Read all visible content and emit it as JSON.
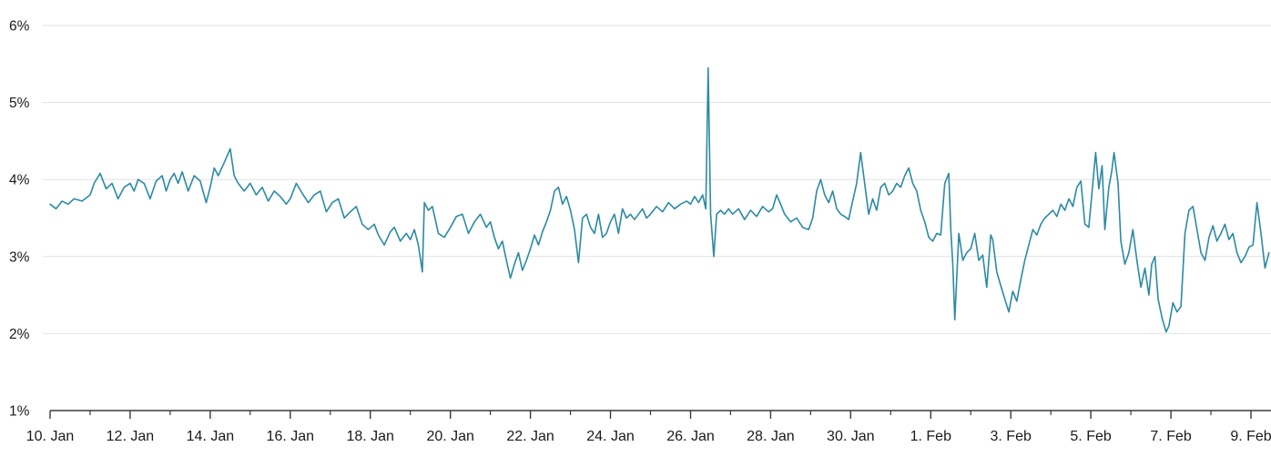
{
  "chart_data": {
    "type": "line",
    "title": "",
    "xlabel": "",
    "ylabel": "",
    "background": "#ffffff",
    "axis_color": "#3a3a3a",
    "text_color": "#1a1a1a",
    "grid": {
      "horizontal": true,
      "vertical": false,
      "color": "#e2e2e2"
    },
    "x_axis": {
      "tick_labels": [
        "10. Jan",
        "12. Jan",
        "14. Jan",
        "16. Jan",
        "18. Jan",
        "20. Jan",
        "22. Jan",
        "24. Jan",
        "26. Jan",
        "28. Jan",
        "30. Jan",
        "1. Feb",
        "3. Feb",
        "5. Feb",
        "7. Feb",
        "9. Feb"
      ],
      "tick_positions_days": [
        0,
        2,
        4,
        6,
        8,
        10,
        12,
        14,
        16,
        18,
        20,
        22,
        24,
        26,
        28,
        30
      ],
      "minor_tick_positions_days": [
        1,
        3,
        5,
        7,
        9,
        11,
        13,
        15,
        17,
        19,
        21,
        23,
        25,
        27,
        29
      ],
      "range_days": [
        0,
        30.5
      ]
    },
    "y_axis": {
      "tick_labels": [
        "1%",
        "2%",
        "3%",
        "4%",
        "5%",
        "6%"
      ],
      "tick_values": [
        1,
        2,
        3,
        4,
        5,
        6
      ],
      "range": [
        1,
        6
      ],
      "unit": "%"
    },
    "series": [
      {
        "name": "percentage-series",
        "color": "#2b8aa4",
        "points": [
          [
            0,
            3.68
          ],
          [
            0.15,
            3.62
          ],
          [
            0.3,
            3.72
          ],
          [
            0.45,
            3.68
          ],
          [
            0.6,
            3.75
          ],
          [
            0.8,
            3.72
          ],
          [
            1,
            3.8
          ],
          [
            1.1,
            3.95
          ],
          [
            1.25,
            4.08
          ],
          [
            1.4,
            3.88
          ],
          [
            1.55,
            3.95
          ],
          [
            1.7,
            3.75
          ],
          [
            1.85,
            3.9
          ],
          [
            2,
            3.95
          ],
          [
            2.1,
            3.85
          ],
          [
            2.2,
            4
          ],
          [
            2.35,
            3.95
          ],
          [
            2.5,
            3.75
          ],
          [
            2.65,
            3.98
          ],
          [
            2.8,
            4.05
          ],
          [
            2.9,
            3.85
          ],
          [
            3,
            4
          ],
          [
            3.1,
            4.08
          ],
          [
            3.2,
            3.95
          ],
          [
            3.3,
            4.1
          ],
          [
            3.45,
            3.85
          ],
          [
            3.6,
            4.05
          ],
          [
            3.75,
            3.98
          ],
          [
            3.9,
            3.7
          ],
          [
            4,
            3.9
          ],
          [
            4.1,
            4.15
          ],
          [
            4.2,
            4.05
          ],
          [
            4.35,
            4.22
          ],
          [
            4.5,
            4.4
          ],
          [
            4.6,
            4.05
          ],
          [
            4.7,
            3.95
          ],
          [
            4.85,
            3.85
          ],
          [
            5,
            3.95
          ],
          [
            5.15,
            3.8
          ],
          [
            5.3,
            3.9
          ],
          [
            5.45,
            3.72
          ],
          [
            5.6,
            3.85
          ],
          [
            5.75,
            3.78
          ],
          [
            5.9,
            3.68
          ],
          [
            6,
            3.75
          ],
          [
            6.15,
            3.95
          ],
          [
            6.3,
            3.82
          ],
          [
            6.45,
            3.7
          ],
          [
            6.6,
            3.8
          ],
          [
            6.75,
            3.85
          ],
          [
            6.9,
            3.58
          ],
          [
            7.05,
            3.7
          ],
          [
            7.2,
            3.75
          ],
          [
            7.35,
            3.5
          ],
          [
            7.5,
            3.58
          ],
          [
            7.65,
            3.65
          ],
          [
            7.8,
            3.42
          ],
          [
            7.95,
            3.35
          ],
          [
            8.1,
            3.42
          ],
          [
            8.2,
            3.28
          ],
          [
            8.35,
            3.15
          ],
          [
            8.5,
            3.32
          ],
          [
            8.6,
            3.38
          ],
          [
            8.75,
            3.2
          ],
          [
            8.9,
            3.3
          ],
          [
            9,
            3.22
          ],
          [
            9.1,
            3.35
          ],
          [
            9.2,
            3.15
          ],
          [
            9.3,
            2.8
          ],
          [
            9.35,
            3.7
          ],
          [
            9.45,
            3.6
          ],
          [
            9.55,
            3.65
          ],
          [
            9.7,
            3.3
          ],
          [
            9.85,
            3.25
          ],
          [
            10,
            3.38
          ],
          [
            10.15,
            3.52
          ],
          [
            10.3,
            3.55
          ],
          [
            10.45,
            3.3
          ],
          [
            10.6,
            3.45
          ],
          [
            10.75,
            3.55
          ],
          [
            10.9,
            3.38
          ],
          [
            11,
            3.45
          ],
          [
            11.1,
            3.25
          ],
          [
            11.2,
            3.1
          ],
          [
            11.3,
            3.2
          ],
          [
            11.4,
            2.95
          ],
          [
            11.5,
            2.72
          ],
          [
            11.6,
            2.9
          ],
          [
            11.7,
            3.05
          ],
          [
            11.8,
            2.82
          ],
          [
            11.9,
            2.95
          ],
          [
            12,
            3.1
          ],
          [
            12.1,
            3.28
          ],
          [
            12.2,
            3.15
          ],
          [
            12.3,
            3.32
          ],
          [
            12.4,
            3.45
          ],
          [
            12.5,
            3.6
          ],
          [
            12.6,
            3.85
          ],
          [
            12.7,
            3.9
          ],
          [
            12.8,
            3.68
          ],
          [
            12.9,
            3.78
          ],
          [
            13,
            3.6
          ],
          [
            13.1,
            3.35
          ],
          [
            13.2,
            2.92
          ],
          [
            13.3,
            3.5
          ],
          [
            13.4,
            3.55
          ],
          [
            13.5,
            3.38
          ],
          [
            13.6,
            3.3
          ],
          [
            13.7,
            3.55
          ],
          [
            13.8,
            3.25
          ],
          [
            13.9,
            3.3
          ],
          [
            14,
            3.45
          ],
          [
            14.1,
            3.55
          ],
          [
            14.2,
            3.3
          ],
          [
            14.3,
            3.62
          ],
          [
            14.4,
            3.5
          ],
          [
            14.5,
            3.55
          ],
          [
            14.6,
            3.48
          ],
          [
            14.7,
            3.55
          ],
          [
            14.8,
            3.62
          ],
          [
            14.9,
            3.5
          ],
          [
            15,
            3.55
          ],
          [
            15.15,
            3.65
          ],
          [
            15.3,
            3.58
          ],
          [
            15.45,
            3.7
          ],
          [
            15.6,
            3.62
          ],
          [
            15.75,
            3.68
          ],
          [
            15.9,
            3.72
          ],
          [
            16,
            3.68
          ],
          [
            16.1,
            3.78
          ],
          [
            16.2,
            3.7
          ],
          [
            16.3,
            3.8
          ],
          [
            16.38,
            3.62
          ],
          [
            16.44,
            5.45
          ],
          [
            16.5,
            3.55
          ],
          [
            16.58,
            3
          ],
          [
            16.65,
            3.55
          ],
          [
            16.75,
            3.6
          ],
          [
            16.85,
            3.55
          ],
          [
            16.95,
            3.62
          ],
          [
            17.05,
            3.55
          ],
          [
            17.2,
            3.62
          ],
          [
            17.35,
            3.48
          ],
          [
            17.5,
            3.6
          ],
          [
            17.65,
            3.52
          ],
          [
            17.8,
            3.65
          ],
          [
            17.95,
            3.58
          ],
          [
            18.05,
            3.62
          ],
          [
            18.15,
            3.8
          ],
          [
            18.25,
            3.68
          ],
          [
            18.35,
            3.55
          ],
          [
            18.5,
            3.45
          ],
          [
            18.65,
            3.5
          ],
          [
            18.8,
            3.38
          ],
          [
            18.95,
            3.35
          ],
          [
            19.05,
            3.5
          ],
          [
            19.15,
            3.85
          ],
          [
            19.25,
            4
          ],
          [
            19.35,
            3.8
          ],
          [
            19.45,
            3.7
          ],
          [
            19.55,
            3.85
          ],
          [
            19.65,
            3.62
          ],
          [
            19.75,
            3.55
          ],
          [
            19.85,
            3.52
          ],
          [
            19.95,
            3.48
          ],
          [
            20.05,
            3.72
          ],
          [
            20.15,
            3.95
          ],
          [
            20.25,
            4.35
          ],
          [
            20.35,
            3.95
          ],
          [
            20.45,
            3.55
          ],
          [
            20.55,
            3.75
          ],
          [
            20.65,
            3.6
          ],
          [
            20.75,
            3.9
          ],
          [
            20.85,
            3.95
          ],
          [
            20.95,
            3.8
          ],
          [
            21.05,
            3.85
          ],
          [
            21.15,
            3.95
          ],
          [
            21.25,
            3.9
          ],
          [
            21.35,
            4.05
          ],
          [
            21.45,
            4.15
          ],
          [
            21.55,
            3.95
          ],
          [
            21.65,
            3.85
          ],
          [
            21.75,
            3.6
          ],
          [
            21.85,
            3.45
          ],
          [
            21.95,
            3.25
          ],
          [
            22.05,
            3.2
          ],
          [
            22.15,
            3.3
          ],
          [
            22.25,
            3.28
          ],
          [
            22.35,
            3.95
          ],
          [
            22.45,
            4.08
          ],
          [
            22.5,
            3.35
          ],
          [
            22.55,
            2.9
          ],
          [
            22.6,
            2.18
          ],
          [
            22.7,
            3.3
          ],
          [
            22.8,
            2.95
          ],
          [
            22.9,
            3.05
          ],
          [
            23,
            3.1
          ],
          [
            23.1,
            3.3
          ],
          [
            23.2,
            2.95
          ],
          [
            23.3,
            3.02
          ],
          [
            23.4,
            2.6
          ],
          [
            23.5,
            3.28
          ],
          [
            23.55,
            3.22
          ],
          [
            23.65,
            2.8
          ],
          [
            23.75,
            2.62
          ],
          [
            23.85,
            2.45
          ],
          [
            23.95,
            2.28
          ],
          [
            24.05,
            2.55
          ],
          [
            24.15,
            2.42
          ],
          [
            24.25,
            2.7
          ],
          [
            24.35,
            2.95
          ],
          [
            24.45,
            3.15
          ],
          [
            24.55,
            3.35
          ],
          [
            24.65,
            3.28
          ],
          [
            24.75,
            3.42
          ],
          [
            24.85,
            3.5
          ],
          [
            24.95,
            3.55
          ],
          [
            25.05,
            3.6
          ],
          [
            25.15,
            3.52
          ],
          [
            25.25,
            3.68
          ],
          [
            25.35,
            3.6
          ],
          [
            25.45,
            3.75
          ],
          [
            25.55,
            3.65
          ],
          [
            25.65,
            3.9
          ],
          [
            25.75,
            3.98
          ],
          [
            25.85,
            3.42
          ],
          [
            25.95,
            3.38
          ],
          [
            26.05,
            3.95
          ],
          [
            26.12,
            4.35
          ],
          [
            26.2,
            3.88
          ],
          [
            26.28,
            4.18
          ],
          [
            26.35,
            3.35
          ],
          [
            26.45,
            3.9
          ],
          [
            26.52,
            4.1
          ],
          [
            26.58,
            4.35
          ],
          [
            26.68,
            3.95
          ],
          [
            26.75,
            3.2
          ],
          [
            26.85,
            2.9
          ],
          [
            26.95,
            3.05
          ],
          [
            27.05,
            3.35
          ],
          [
            27.15,
            2.95
          ],
          [
            27.25,
            2.6
          ],
          [
            27.35,
            2.85
          ],
          [
            27.45,
            2.5
          ],
          [
            27.52,
            2.9
          ],
          [
            27.6,
            3
          ],
          [
            27.68,
            2.45
          ],
          [
            27.78,
            2.2
          ],
          [
            27.88,
            2.02
          ],
          [
            27.95,
            2.1
          ],
          [
            28.05,
            2.4
          ],
          [
            28.15,
            2.28
          ],
          [
            28.25,
            2.35
          ],
          [
            28.35,
            3.3
          ],
          [
            28.45,
            3.6
          ],
          [
            28.55,
            3.65
          ],
          [
            28.65,
            3.35
          ],
          [
            28.75,
            3.05
          ],
          [
            28.85,
            2.95
          ],
          [
            28.95,
            3.25
          ],
          [
            29.05,
            3.4
          ],
          [
            29.15,
            3.2
          ],
          [
            29.25,
            3.3
          ],
          [
            29.35,
            3.42
          ],
          [
            29.45,
            3.22
          ],
          [
            29.55,
            3.3
          ],
          [
            29.65,
            3.05
          ],
          [
            29.75,
            2.92
          ],
          [
            29.85,
            3
          ],
          [
            29.95,
            3.12
          ],
          [
            30.05,
            3.15
          ],
          [
            30.15,
            3.7
          ],
          [
            30.25,
            3.3
          ],
          [
            30.35,
            2.85
          ],
          [
            30.45,
            3.05
          ]
        ]
      }
    ],
    "legend": {
      "visible": false
    }
  }
}
